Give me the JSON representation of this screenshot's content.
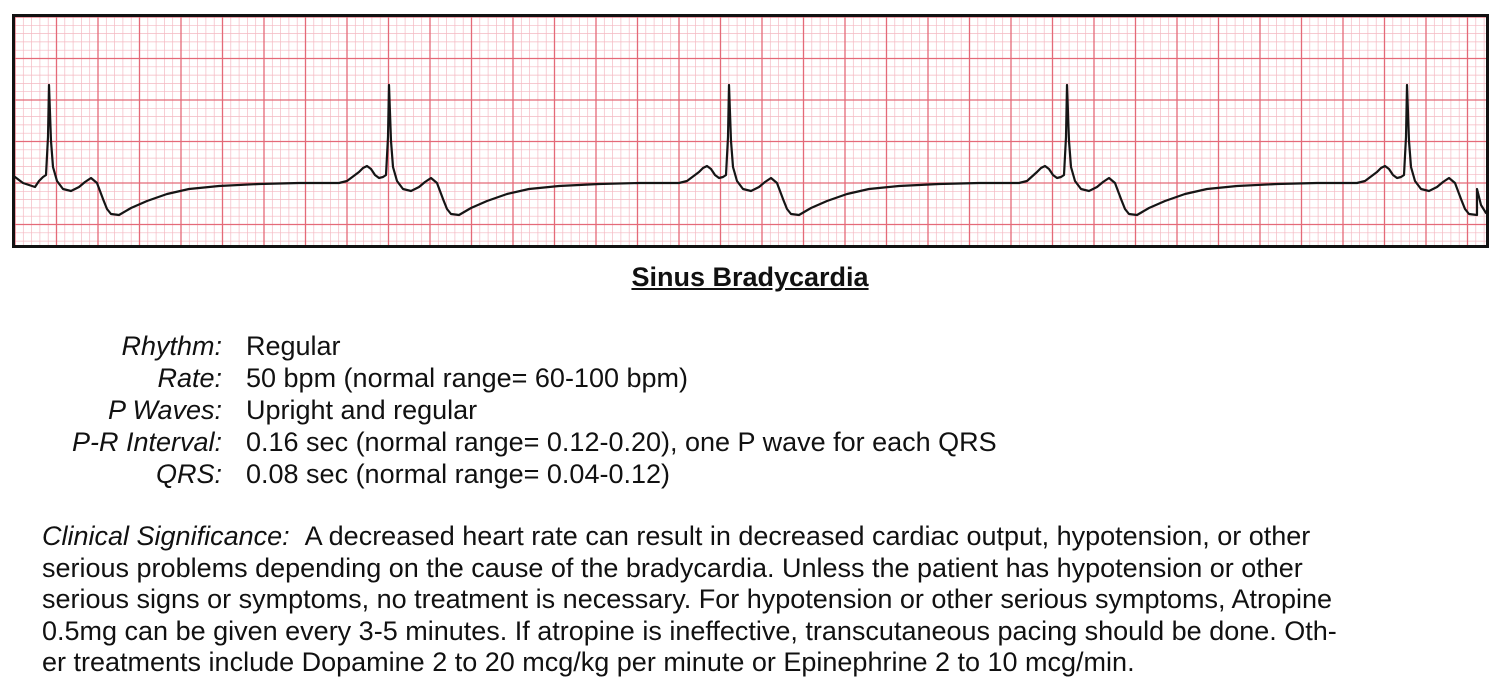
{
  "ecg": {
    "grid_color": "#e46a78",
    "grid_minor_color": "#f4b9c2",
    "trace_color": "#151515"
  },
  "title": "Sinus Bradycardia",
  "parameters": [
    {
      "label": "Rhythm:",
      "value": "Regular"
    },
    {
      "label": "Rate:",
      "value": "50 bpm (normal range= 60-100 bpm)"
    },
    {
      "label": "P Waves:",
      "value": "Upright and regular"
    },
    {
      "label": "P-R Interval:",
      "value": "0.16 sec (normal range= 0.12-0.20), one P wave for each QRS"
    },
    {
      "label": "QRS:",
      "value": "0.08 sec (normal range= 0.04-0.12)"
    }
  ],
  "clinical": {
    "label": "Clinical Significance:",
    "lines": [
      "A decreased heart rate can result in decreased cardiac output, hypotension, or other",
      "serious problems depending on the cause of the bradycardia. Unless the patient has hypotension or other",
      "serious signs or symptoms, no treatment is necessary. For hypotension or other serious symptoms, Atropine",
      "0.5mg can be given every 3-5 minutes. If atropine is ineffective, transcutaneous pacing should be done. Oth-",
      "er treatments include Dopamine 2 to 20 mcg/kg per minute or Epinephrine 2 to 10 mcg/min."
    ]
  }
}
